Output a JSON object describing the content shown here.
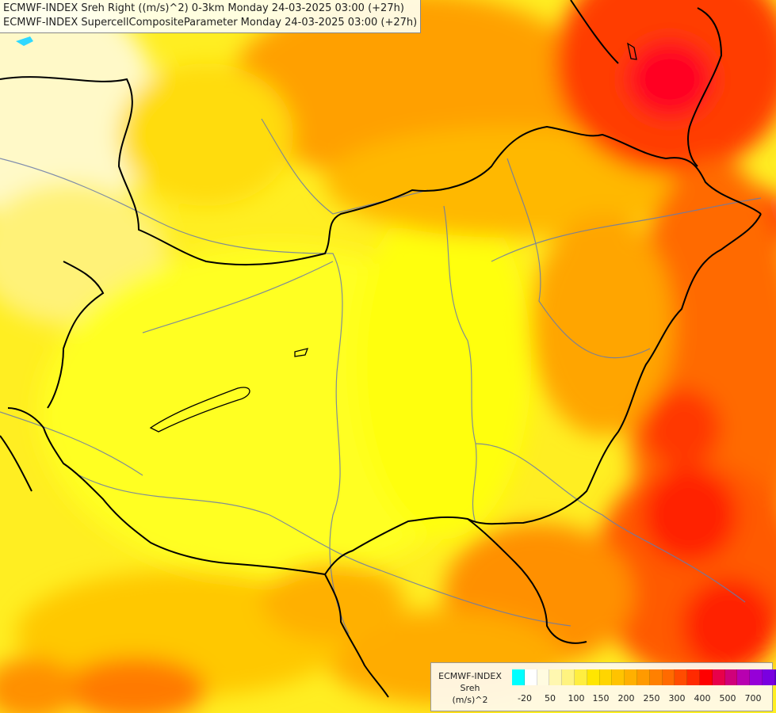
{
  "titles": {
    "line1": "ECMWF-INDEX Sreh Right ((m/s)^2) 0-3km Monday 24-03-2025 03:00 (+27h)",
    "line2": "ECMWF-INDEX SupercellCompositeParameter Monday 24-03-2025 03:00 (+27h)"
  },
  "legend": {
    "source": "ECMWF-INDEX",
    "parameter": "Sreh",
    "unit": "(m/s)^2",
    "colors": [
      "#00ffff",
      "#ffffff",
      "#fffbe0",
      "#fff7b0",
      "#fff380",
      "#ffee40",
      "#ffe600",
      "#ffd500",
      "#ffc300",
      "#ffb000",
      "#ff9a00",
      "#ff8000",
      "#ff6a00",
      "#ff4c00",
      "#ff2a00",
      "#ff0000",
      "#e8004a",
      "#d0007a",
      "#b800b0",
      "#9600d8",
      "#7a00e0",
      "#5000c8",
      "#2a00a0",
      "#10007a"
    ],
    "ticks": [
      "-20",
      "50",
      "100",
      "150",
      "200",
      "250",
      "300",
      "400",
      "500",
      "700"
    ]
  }
}
